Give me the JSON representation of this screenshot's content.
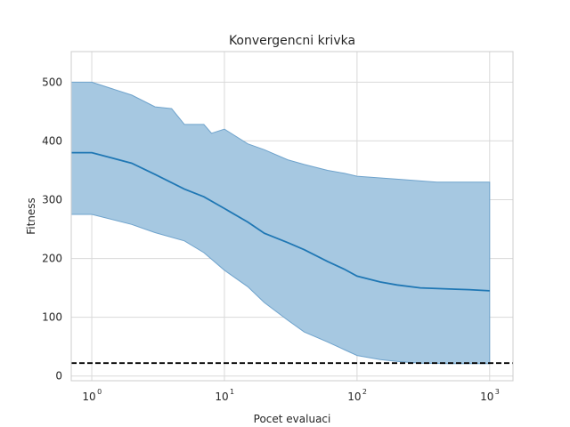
{
  "chart_data": {
    "type": "line",
    "title": "Konvergencni krivka",
    "xlabel": "Pocet evaluaci",
    "ylabel": "Fitness",
    "xscale": "log",
    "xlim": [
      0.7,
      1500
    ],
    "ylim": [
      -8,
      552
    ],
    "grid": true,
    "x_ticks": [
      {
        "base": "10",
        "exp": "0",
        "value": 1
      },
      {
        "base": "10",
        "exp": "1",
        "value": 10
      },
      {
        "base": "10",
        "exp": "2",
        "value": 100
      },
      {
        "base": "10",
        "exp": "3",
        "value": 1000
      }
    ],
    "y_ticks": [
      0,
      100,
      200,
      300,
      400,
      500
    ],
    "colors": {
      "mean": "#1f77b4",
      "band_fill": "#a6c8e1",
      "band_edge": "#6fa3cc",
      "reference": "#000000",
      "grid": "#d9d9d9",
      "axes": "#cccccc"
    },
    "series": [
      {
        "kind": "mean_line",
        "x": [
          0.7,
          1,
          2,
          3,
          5,
          7,
          10,
          15,
          20,
          30,
          40,
          60,
          80,
          100,
          150,
          200,
          300,
          500,
          700,
          1000
        ],
        "y": [
          380,
          380,
          362,
          343,
          318,
          305,
          285,
          262,
          243,
          227,
          215,
          195,
          182,
          170,
          160,
          155,
          150,
          148,
          147,
          145
        ]
      },
      {
        "kind": "band_upper",
        "x": [
          0.7,
          1,
          2,
          3,
          4,
          5,
          7,
          8,
          10,
          15,
          20,
          30,
          40,
          60,
          80,
          100,
          200,
          400,
          700,
          1000
        ],
        "y": [
          500,
          500,
          478,
          458,
          455,
          428,
          428,
          413,
          420,
          395,
          385,
          368,
          360,
          350,
          345,
          340,
          335,
          330,
          330,
          330
        ]
      },
      {
        "kind": "band_lower",
        "x": [
          0.7,
          1,
          2,
          3,
          5,
          7,
          10,
          15,
          20,
          30,
          40,
          60,
          80,
          100,
          150,
          200,
          300,
          500,
          700,
          1000
        ],
        "y": [
          275,
          275,
          258,
          244,
          230,
          210,
          180,
          152,
          125,
          95,
          75,
          58,
          45,
          35,
          28,
          25,
          22,
          21,
          21,
          21
        ]
      },
      {
        "kind": "reference_line",
        "y": 22
      }
    ]
  }
}
